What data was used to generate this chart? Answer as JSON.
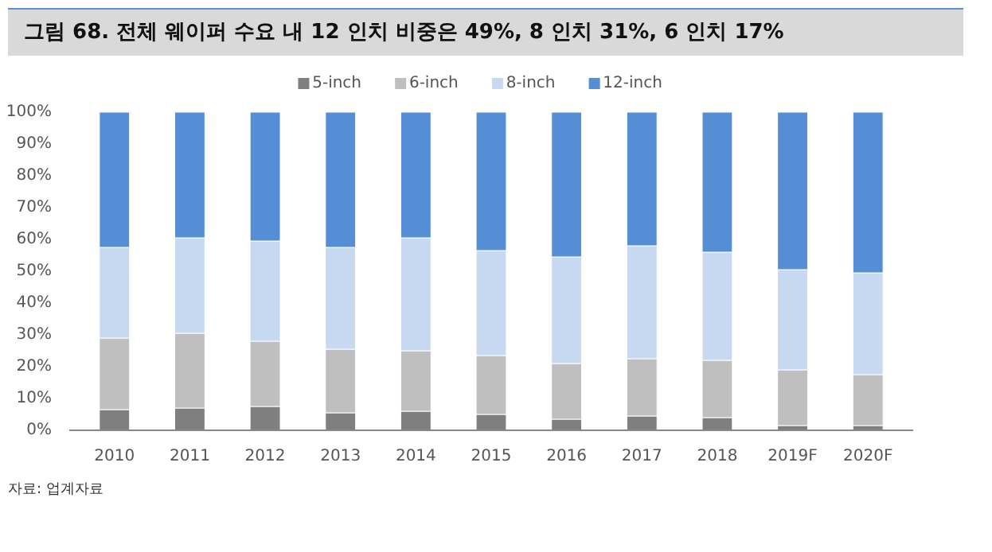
{
  "chart_data": {
    "type": "bar",
    "stacked": true,
    "title": "그림 68. 전체 웨이퍼 수요 내 12 인치 비중은 49%, 8 인치 31%, 6 인치 17%",
    "categories": [
      "2010",
      "2011",
      "2012",
      "2013",
      "2014",
      "2015",
      "2016",
      "2017",
      "2018",
      "2019F",
      "2020F"
    ],
    "series": [
      {
        "name": "5-inch",
        "color": "#7f7f7f",
        "values": [
          6.5,
          7,
          7.5,
          5.5,
          6,
          5,
          3.5,
          4.5,
          4,
          1.5,
          1.5
        ]
      },
      {
        "name": "6-inch",
        "color": "#bfbfbf",
        "values": [
          22.5,
          23.5,
          20.5,
          20,
          19,
          18.5,
          17.5,
          18,
          18,
          17.5,
          16
        ]
      },
      {
        "name": "8-inch",
        "color": "#c6d9f1",
        "values": [
          28.5,
          30,
          31.5,
          32,
          35.5,
          33,
          33.5,
          35.5,
          34,
          31.5,
          32
        ]
      },
      {
        "name": "12-inch",
        "color": "#558ed5",
        "values": [
          42.5,
          39.5,
          40.5,
          42.5,
          39.5,
          43.5,
          45.5,
          42,
          44,
          49.5,
          50.5
        ]
      }
    ],
    "ylim": [
      0,
      100
    ],
    "yticks": [
      {
        "value": 0,
        "label": "0%"
      },
      {
        "value": 10,
        "label": "10%"
      },
      {
        "value": 20,
        "label": "20%"
      },
      {
        "value": 30,
        "label": "30%"
      },
      {
        "value": 40,
        "label": "40%"
      },
      {
        "value": 50,
        "label": "50%"
      },
      {
        "value": 60,
        "label": "60%"
      },
      {
        "value": 70,
        "label": "70%"
      },
      {
        "value": 80,
        "label": "80%"
      },
      {
        "value": 90,
        "label": "90%"
      },
      {
        "value": 100,
        "label": "100%"
      }
    ],
    "grid": false,
    "legend": "top",
    "annotations": [
      "자료: 업계자료"
    ]
  }
}
